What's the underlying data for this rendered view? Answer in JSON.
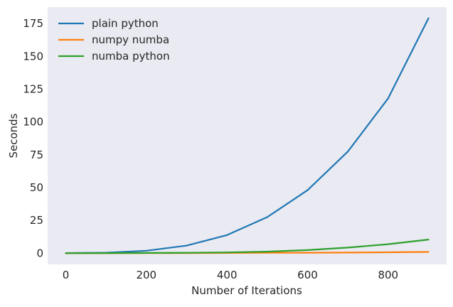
{
  "chart_data": {
    "type": "line",
    "xlabel": "Number of Iterations",
    "ylabel": "Seconds",
    "xlim": [
      -45,
      945
    ],
    "ylim": [
      -8.5,
      187.5
    ],
    "xticks": [
      0,
      200,
      400,
      600,
      800
    ],
    "yticks": [
      0,
      25,
      50,
      75,
      100,
      125,
      150,
      175
    ],
    "grid": false,
    "legend_position": "top-left",
    "background_color": "#eaeaf2",
    "x": [
      0,
      100,
      200,
      300,
      400,
      500,
      600,
      700,
      800,
      900
    ],
    "series": [
      {
        "name": "plain python",
        "color": "#1f77b4",
        "values": [
          0.1,
          0.4,
          1.9,
          5.8,
          13.8,
          27.5,
          48.0,
          77.5,
          118.0,
          179.0
        ]
      },
      {
        "name": "numpy numba",
        "color": "#ff7f0e",
        "values": [
          0.0,
          0.0,
          0.1,
          0.1,
          0.2,
          0.3,
          0.4,
          0.5,
          0.7,
          1.0
        ]
      },
      {
        "name": "numba python",
        "color": "#2ca02c",
        "values": [
          0.0,
          0.1,
          0.2,
          0.3,
          0.6,
          1.2,
          2.4,
          4.3,
          6.9,
          10.4
        ]
      }
    ]
  }
}
